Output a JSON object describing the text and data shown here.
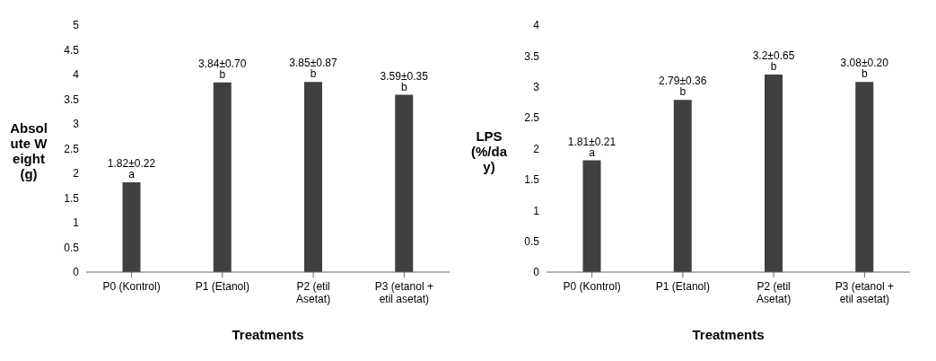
{
  "chart_data": [
    {
      "type": "bar",
      "xlabel": "Treatments",
      "ylabel": "Absolute Weight (g)",
      "categories": [
        "P0 (Kontrol)",
        "P1 (Etanol)",
        "P2 (etil Asetat)",
        "P3 (etanol + etil asetat)"
      ],
      "values": [
        1.82,
        3.84,
        3.85,
        3.59
      ],
      "value_labels": [
        "1.82±0.22 a",
        "3.84±0.70 b",
        "3.85±0.87 b",
        "3.59±0.35 b"
      ],
      "color": "#404040",
      "ylim": [
        0,
        5
      ],
      "yticks": [
        0,
        0.5,
        1,
        1.5,
        2,
        2.5,
        3,
        3.5,
        4,
        4.5,
        5
      ],
      "grid": false
    },
    {
      "type": "bar",
      "xlabel": "Treatments",
      "ylabel": "LPS (%/day)",
      "categories": [
        "P0 (Kontrol)",
        "P1 (Etanol)",
        "P2 (etil Asetat)",
        "P3 (etanol + etil asetat)"
      ],
      "values": [
        1.81,
        2.79,
        3.2,
        3.08
      ],
      "value_labels": [
        "1.81±0.21 a",
        "2.79±0.36 b",
        "3.2±0.65  b",
        "3.08±0.20 b"
      ],
      "color": "#404040",
      "ylim": [
        0,
        4
      ],
      "yticks": [
        0,
        0.5,
        1,
        1.5,
        2,
        2.5,
        3,
        3.5,
        4
      ],
      "grid": false
    }
  ]
}
